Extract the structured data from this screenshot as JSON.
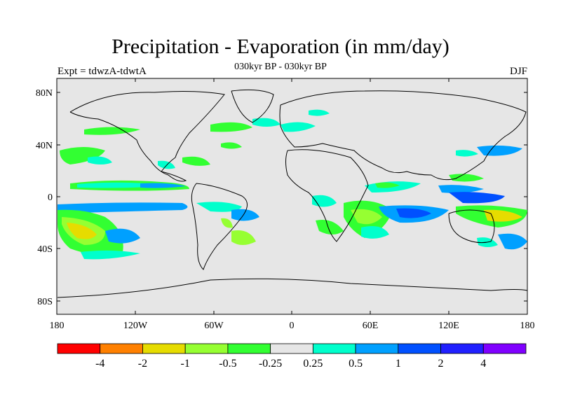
{
  "header": {
    "title": "Precipitation - Evaporation (in mm/day)",
    "subtitle": "030kyr BP - 030kyr BP",
    "experiment": "Expt = tdwzA-tdwtA",
    "season": "DJF"
  },
  "map": {
    "lat_labels": [
      "80N",
      "40N",
      "0",
      "40S",
      "80S"
    ],
    "lon_labels": [
      "180",
      "120W",
      "60W",
      "0",
      "60E",
      "120E",
      "180"
    ],
    "ocean_color": "#e6e6e6"
  },
  "colorbar": {
    "colors": [
      "#ff0000",
      "#ff8000",
      "#e6dc00",
      "#96ff32",
      "#32ff32",
      "#e6e6e6",
      "#00ffcc",
      "#00a0ff",
      "#0050ff",
      "#2020ff",
      "#8000ff"
    ],
    "labels": [
      "-4",
      "-2",
      "-1",
      "-0.5",
      "-0.25",
      "0.25",
      "0.5",
      "1",
      "2",
      "4"
    ]
  }
}
